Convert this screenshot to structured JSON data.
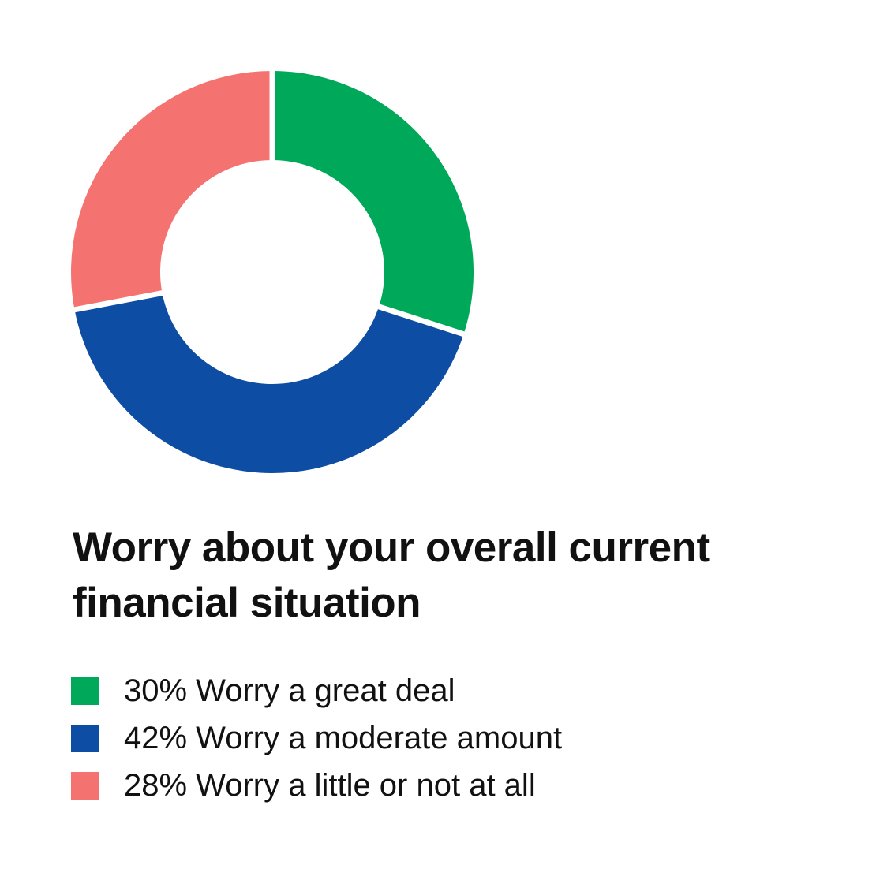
{
  "chart_data": {
    "type": "pie",
    "title": "Worry about your overall current financial situation",
    "title_lines": [
      "Worry about your overall current",
      "financial situation"
    ],
    "donut": true,
    "legend_position": "bottom-left",
    "slices": [
      {
        "label": "30% Worry a great deal",
        "category": "Worry a great deal",
        "value": 30,
        "color": "#00A85A"
      },
      {
        "label": "42% Worry a moderate amount",
        "category": "Worry a moderate amount",
        "value": 42,
        "color": "#0E4DA4"
      },
      {
        "label": "28% Worry a little or not at all",
        "category": "Worry a little or not at all",
        "value": 28,
        "color": "#F47270"
      }
    ]
  }
}
